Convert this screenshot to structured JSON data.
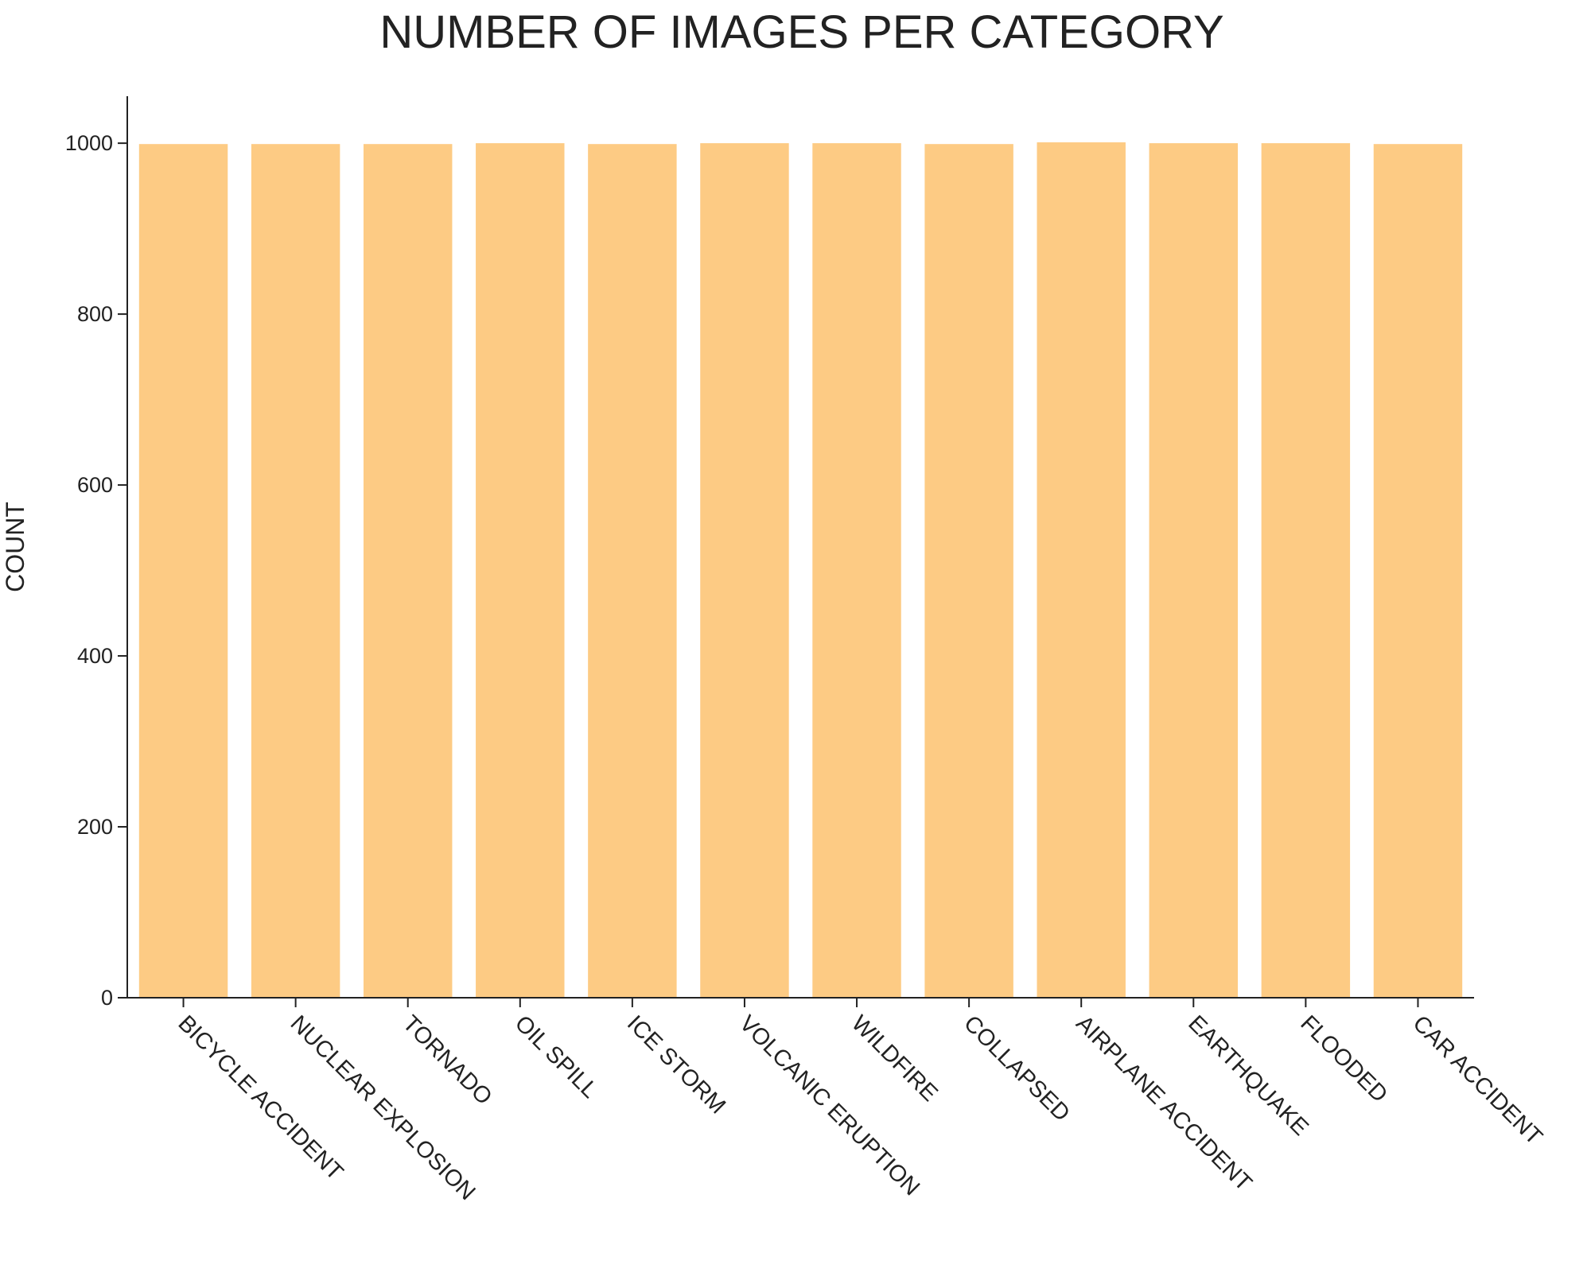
{
  "chart_data": {
    "type": "bar",
    "title": "NUMBER OF IMAGES PER CATEGORY",
    "xlabel": "",
    "ylabel": "COUNT",
    "categories": [
      "BICYCLE ACCIDENT",
      "NUCLEAR EXPLOSION",
      "TORNADO",
      "OIL SPILL",
      "ICE STORM",
      "VOLCANIC ERUPTION",
      "WILDFIRE",
      "COLLAPSED",
      "AIRPLANE ACCIDENT",
      "EARTHQUAKE",
      "FLOODED",
      "CAR ACCIDENT"
    ],
    "values": [
      999,
      999,
      999,
      1000,
      999,
      1000,
      1000,
      999,
      1001,
      1000,
      1000,
      999
    ],
    "ylim": [
      0,
      1055
    ],
    "yticks": [
      0,
      200,
      400,
      600,
      800,
      1000
    ],
    "bar_color": "#fdcb84",
    "grid": false,
    "legend": "none"
  }
}
